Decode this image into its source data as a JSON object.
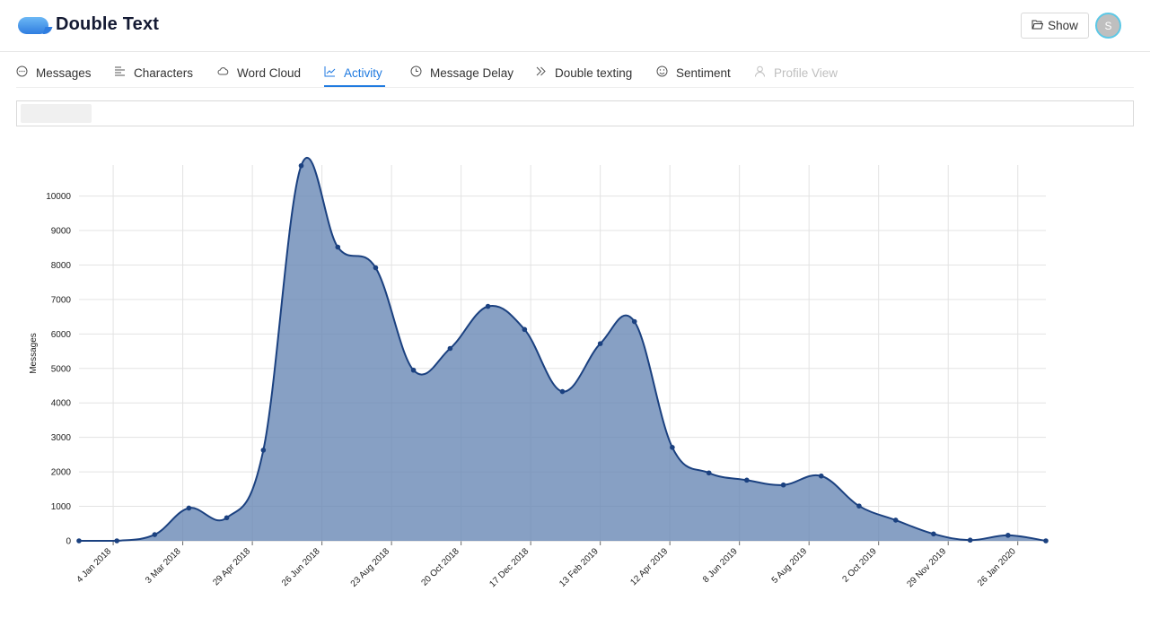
{
  "header": {
    "app_title": "Double Text",
    "show_button": "Show",
    "avatar_initial": "S"
  },
  "tabs": [
    {
      "label": "Messages",
      "icon": "chat-icon"
    },
    {
      "label": "Characters",
      "icon": "text-lines-icon"
    },
    {
      "label": "Word Cloud",
      "icon": "cloud-icon"
    },
    {
      "label": "Activity",
      "icon": "line-chart-icon",
      "active": true
    },
    {
      "label": "Message Delay",
      "icon": "clock-icon"
    },
    {
      "label": "Double texting",
      "icon": "double-chevron-icon"
    },
    {
      "label": "Sentiment",
      "icon": "smile-icon"
    },
    {
      "label": "Profile View",
      "icon": "user-icon",
      "disabled": true
    }
  ],
  "colors": {
    "accent": "#1f7ae0",
    "area_fill": "#6585b3",
    "area_line": "#1b4180"
  },
  "chart_data": {
    "type": "area",
    "ylabel": "Messages",
    "xlabel": "",
    "ylim": [
      0,
      10900
    ],
    "yticks": [
      0,
      1000,
      2000,
      3000,
      4000,
      5000,
      6000,
      7000,
      8000,
      9000,
      10000
    ],
    "xticks": [
      "4 Jan 2018",
      "3 Mar 2018",
      "29 Apr 2018",
      "26 Jun 2018",
      "23 Aug 2018",
      "20 Oct 2018",
      "17 Dec 2018",
      "13 Feb 2019",
      "12 Apr 2019",
      "8 Jun 2019",
      "5 Aug 2019",
      "2 Oct 2019",
      "29 Nov 2019",
      "26 Jan 2020"
    ],
    "grid": true,
    "x": [
      "2017-12-07",
      "2018-01-07",
      "2018-02-07",
      "2018-03-07",
      "2018-04-07",
      "2018-05-07",
      "2018-06-07",
      "2018-07-07",
      "2018-08-07",
      "2018-09-07",
      "2018-10-07",
      "2018-11-07",
      "2018-12-07",
      "2019-01-07",
      "2019-02-07",
      "2019-03-07",
      "2019-04-07",
      "2019-05-07",
      "2019-06-07",
      "2019-07-07",
      "2019-08-07",
      "2019-09-07",
      "2019-10-07",
      "2019-11-07",
      "2019-12-07",
      "2020-01-07",
      "2020-02-07"
    ],
    "values": [
      0,
      0,
      180,
      950,
      670,
      2630,
      10880,
      8520,
      7920,
      4950,
      5580,
      6800,
      6130,
      4330,
      5720,
      6360,
      2710,
      1970,
      1760,
      1620,
      1880,
      1010,
      600,
      200,
      20,
      160,
      0
    ]
  }
}
